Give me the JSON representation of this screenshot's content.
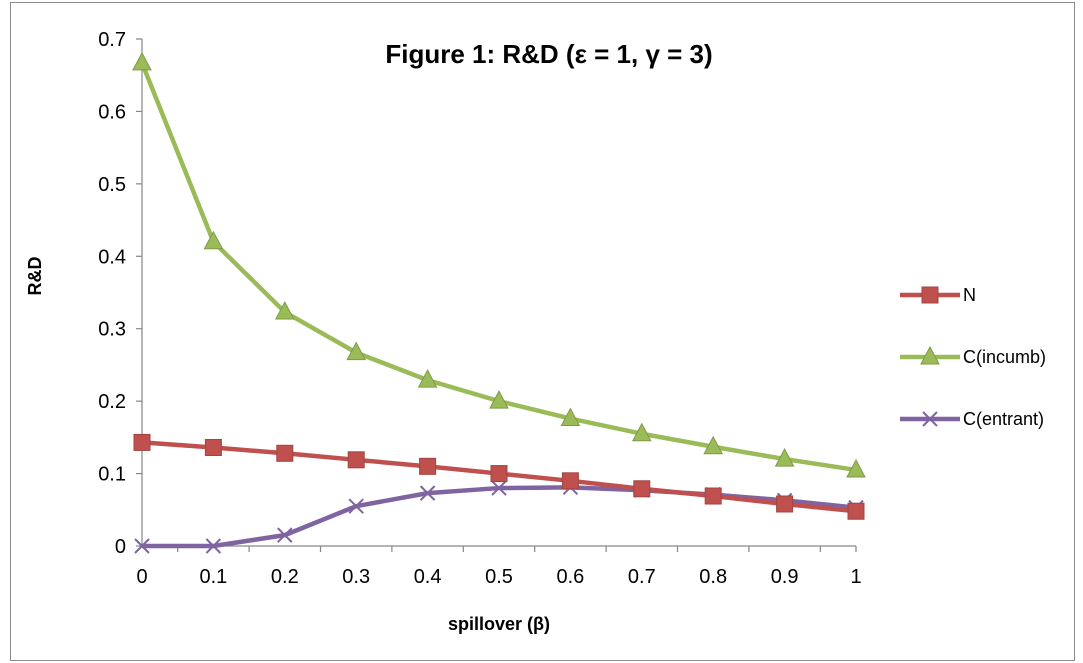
{
  "chart_data": {
    "type": "line",
    "title": "Figure 1: R&D (ε = 1, γ = 3)",
    "xlabel": "spillover (β)",
    "ylabel": "R&D",
    "x": [
      0,
      0.1,
      0.2,
      0.3,
      0.4,
      0.5,
      0.6,
      0.7,
      0.8,
      0.9,
      1
    ],
    "x_tick_labels": [
      "0",
      "0.1",
      "0.2",
      "0.3",
      "0.4",
      "0.5",
      "0.6",
      "0.7",
      "0.8",
      "0.9",
      "1"
    ],
    "y_tick_labels": [
      "0",
      "0.1",
      "0.2",
      "0.3",
      "0.4",
      "0.5",
      "0.6",
      "0.7"
    ],
    "xlim": [
      0,
      1
    ],
    "ylim": [
      0,
      0.7
    ],
    "grid": false,
    "legend_position": "right",
    "series": [
      {
        "name": "N",
        "color": "#c0504d",
        "marker": "square",
        "values": [
          0.143,
          0.136,
          0.128,
          0.119,
          0.11,
          0.1,
          0.09,
          0.079,
          0.069,
          0.058,
          0.048
        ]
      },
      {
        "name": "C(incumb)",
        "color": "#9bbb59",
        "marker": "triangle",
        "values": [
          0.667,
          0.42,
          0.323,
          0.267,
          0.229,
          0.2,
          0.176,
          0.155,
          0.137,
          0.12,
          0.105
        ]
      },
      {
        "name": "C(entrant)",
        "color": "#8064a2",
        "marker": "x",
        "values": [
          0,
          0,
          0.015,
          0.055,
          0.073,
          0.08,
          0.081,
          0.077,
          0.071,
          0.063,
          0.053
        ]
      }
    ]
  }
}
